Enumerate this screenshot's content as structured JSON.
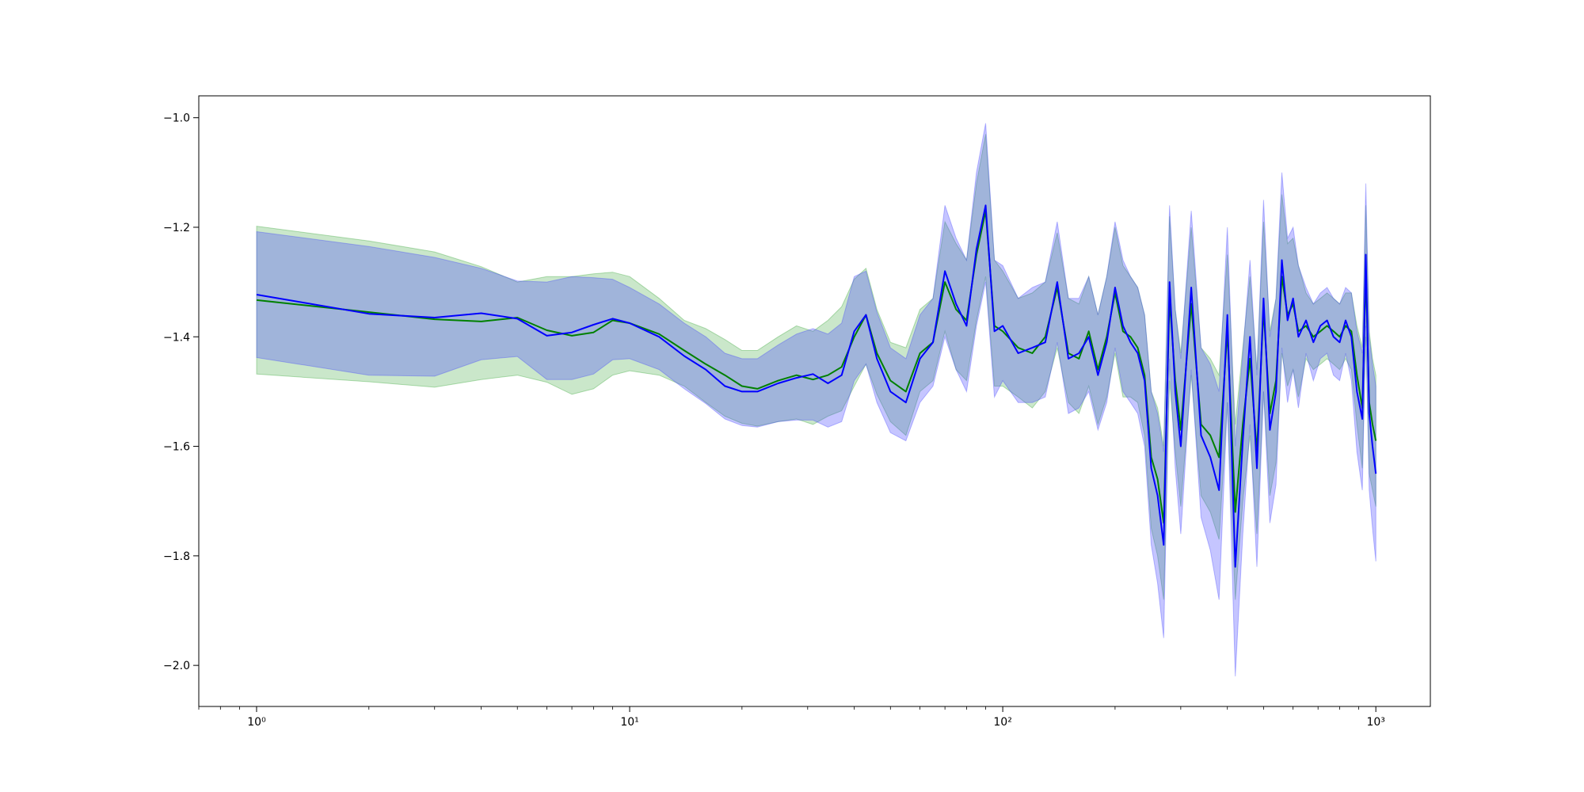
{
  "chart_data": {
    "type": "line",
    "title": "",
    "xlabel": "",
    "ylabel": "",
    "xscale": "log",
    "xlim": [
      0.7,
      1400
    ],
    "ylim": [
      -2.075,
      -0.96
    ],
    "grid": false,
    "colors": {
      "green": "#008000",
      "blue": "#0000ff",
      "green_band": "#2ca02c",
      "blue_band": "#4040ff"
    },
    "x_ticks": [
      {
        "value": 1,
        "label": "10⁰"
      },
      {
        "value": 10,
        "label": "10¹"
      },
      {
        "value": 100,
        "label": "10²"
      },
      {
        "value": 1000,
        "label": "10³"
      }
    ],
    "y_ticks": [
      {
        "value": -1.0,
        "label": "−1.0"
      },
      {
        "value": -1.2,
        "label": "−1.2"
      },
      {
        "value": -1.4,
        "label": "−1.4"
      },
      {
        "value": -1.6,
        "label": "−1.6"
      },
      {
        "value": -1.8,
        "label": "−1.8"
      },
      {
        "value": -2.0,
        "label": "−2.0"
      }
    ],
    "x": [
      1,
      2,
      3,
      4,
      5,
      6,
      7,
      8,
      9,
      10,
      12,
      14,
      16,
      18,
      20,
      22,
      25,
      28,
      31,
      34,
      37,
      40,
      43,
      46,
      50,
      55,
      60,
      65,
      70,
      75,
      80,
      85,
      90,
      95,
      100,
      110,
      120,
      130,
      140,
      150,
      160,
      170,
      180,
      190,
      200,
      210,
      220,
      230,
      240,
      250,
      260,
      270,
      280,
      290,
      300,
      320,
      340,
      360,
      380,
      400,
      420,
      440,
      460,
      480,
      500,
      520,
      540,
      560,
      580,
      600,
      620,
      650,
      680,
      710,
      740,
      770,
      800,
      830,
      860,
      890,
      920,
      940,
      960,
      980,
      1000
    ],
    "series": [
      {
        "color": "green",
        "values": [
          -1.333,
          -1.355,
          -1.368,
          -1.372,
          -1.365,
          -1.388,
          -1.398,
          -1.392,
          -1.37,
          -1.375,
          -1.395,
          -1.425,
          -1.45,
          -1.47,
          -1.49,
          -1.495,
          -1.48,
          -1.47,
          -1.478,
          -1.47,
          -1.455,
          -1.4,
          -1.36,
          -1.43,
          -1.48,
          -1.5,
          -1.43,
          -1.41,
          -1.3,
          -1.35,
          -1.37,
          -1.25,
          -1.17,
          -1.38,
          -1.39,
          -1.42,
          -1.43,
          -1.4,
          -1.31,
          -1.43,
          -1.44,
          -1.39,
          -1.46,
          -1.4,
          -1.32,
          -1.39,
          -1.4,
          -1.42,
          -1.47,
          -1.62,
          -1.66,
          -1.74,
          -1.33,
          -1.48,
          -1.57,
          -1.34,
          -1.56,
          -1.58,
          -1.62,
          -1.39,
          -1.72,
          -1.56,
          -1.44,
          -1.61,
          -1.35,
          -1.54,
          -1.48,
          -1.29,
          -1.36,
          -1.34,
          -1.39,
          -1.38,
          -1.4,
          -1.39,
          -1.38,
          -1.39,
          -1.4,
          -1.38,
          -1.39,
          -1.47,
          -1.53,
          -1.28,
          -1.52,
          -1.56,
          -1.59
        ]
      },
      {
        "color": "blue",
        "values": [
          -1.323,
          -1.358,
          -1.365,
          -1.357,
          -1.367,
          -1.398,
          -1.392,
          -1.378,
          -1.367,
          -1.375,
          -1.4,
          -1.435,
          -1.46,
          -1.49,
          -1.5,
          -1.5,
          -1.485,
          -1.475,
          -1.468,
          -1.485,
          -1.47,
          -1.39,
          -1.36,
          -1.44,
          -1.5,
          -1.52,
          -1.44,
          -1.41,
          -1.28,
          -1.34,
          -1.38,
          -1.24,
          -1.16,
          -1.39,
          -1.38,
          -1.43,
          -1.42,
          -1.41,
          -1.3,
          -1.44,
          -1.43,
          -1.4,
          -1.47,
          -1.41,
          -1.31,
          -1.38,
          -1.41,
          -1.43,
          -1.48,
          -1.64,
          -1.69,
          -1.78,
          -1.3,
          -1.5,
          -1.6,
          -1.31,
          -1.58,
          -1.62,
          -1.68,
          -1.36,
          -1.82,
          -1.59,
          -1.4,
          -1.64,
          -1.33,
          -1.57,
          -1.5,
          -1.26,
          -1.37,
          -1.33,
          -1.4,
          -1.37,
          -1.41,
          -1.38,
          -1.37,
          -1.4,
          -1.41,
          -1.37,
          -1.4,
          -1.5,
          -1.55,
          -1.25,
          -1.54,
          -1.6,
          -1.65
        ]
      }
    ],
    "bands": [
      {
        "color": "green_band",
        "upper": [
          -1.198,
          -1.225,
          -1.245,
          -1.272,
          -1.3,
          -1.29,
          -1.29,
          -1.285,
          -1.282,
          -1.29,
          -1.33,
          -1.37,
          -1.385,
          -1.405,
          -1.425,
          -1.425,
          -1.4,
          -1.38,
          -1.39,
          -1.37,
          -1.345,
          -1.295,
          -1.275,
          -1.35,
          -1.41,
          -1.42,
          -1.35,
          -1.33,
          -1.19,
          -1.23,
          -1.26,
          -1.12,
          -1.03,
          -1.26,
          -1.28,
          -1.33,
          -1.32,
          -1.3,
          -1.21,
          -1.33,
          -1.34,
          -1.29,
          -1.36,
          -1.29,
          -1.2,
          -1.27,
          -1.29,
          -1.31,
          -1.36,
          -1.5,
          -1.53,
          -1.6,
          -1.18,
          -1.35,
          -1.43,
          -1.2,
          -1.42,
          -1.44,
          -1.47,
          -1.25,
          -1.56,
          -1.42,
          -1.29,
          -1.46,
          -1.19,
          -1.39,
          -1.33,
          -1.14,
          -1.23,
          -1.22,
          -1.27,
          -1.32,
          -1.34,
          -1.33,
          -1.32,
          -1.33,
          -1.34,
          -1.32,
          -1.32,
          -1.38,
          -1.42,
          -1.16,
          -1.39,
          -1.44,
          -1.47
        ],
        "lower": [
          -1.468,
          -1.482,
          -1.492,
          -1.478,
          -1.47,
          -1.483,
          -1.505,
          -1.495,
          -1.47,
          -1.462,
          -1.47,
          -1.49,
          -1.52,
          -1.545,
          -1.558,
          -1.563,
          -1.555,
          -1.55,
          -1.56,
          -1.545,
          -1.535,
          -1.49,
          -1.45,
          -1.505,
          -1.555,
          -1.58,
          -1.5,
          -1.48,
          -1.39,
          -1.46,
          -1.48,
          -1.37,
          -1.29,
          -1.49,
          -1.49,
          -1.51,
          -1.53,
          -1.5,
          -1.42,
          -1.52,
          -1.54,
          -1.49,
          -1.56,
          -1.51,
          -1.43,
          -1.51,
          -1.51,
          -1.52,
          -1.58,
          -1.75,
          -1.8,
          -1.88,
          -1.48,
          -1.61,
          -1.71,
          -1.47,
          -1.69,
          -1.72,
          -1.77,
          -1.52,
          -1.88,
          -1.7,
          -1.58,
          -1.76,
          -1.5,
          -1.69,
          -1.63,
          -1.43,
          -1.49,
          -1.46,
          -1.51,
          -1.44,
          -1.46,
          -1.45,
          -1.44,
          -1.45,
          -1.46,
          -1.44,
          -1.46,
          -1.56,
          -1.64,
          -1.4,
          -1.65,
          -1.68,
          -1.71
        ]
      },
      {
        "color": "blue_band",
        "upper": [
          -1.208,
          -1.235,
          -1.255,
          -1.275,
          -1.298,
          -1.3,
          -1.29,
          -1.292,
          -1.295,
          -1.31,
          -1.34,
          -1.375,
          -1.4,
          -1.43,
          -1.44,
          -1.44,
          -1.415,
          -1.395,
          -1.385,
          -1.395,
          -1.375,
          -1.29,
          -1.28,
          -1.355,
          -1.42,
          -1.44,
          -1.36,
          -1.33,
          -1.16,
          -1.22,
          -1.26,
          -1.1,
          -1.01,
          -1.26,
          -1.27,
          -1.33,
          -1.31,
          -1.3,
          -1.19,
          -1.33,
          -1.33,
          -1.29,
          -1.36,
          -1.29,
          -1.19,
          -1.26,
          -1.29,
          -1.31,
          -1.36,
          -1.5,
          -1.54,
          -1.61,
          -1.16,
          -1.35,
          -1.44,
          -1.17,
          -1.42,
          -1.45,
          -1.5,
          -1.2,
          -1.6,
          -1.43,
          -1.26,
          -1.47,
          -1.15,
          -1.4,
          -1.33,
          -1.1,
          -1.22,
          -1.2,
          -1.27,
          -1.31,
          -1.34,
          -1.32,
          -1.31,
          -1.33,
          -1.34,
          -1.31,
          -1.32,
          -1.39,
          -1.43,
          -1.12,
          -1.4,
          -1.45,
          -1.49
        ],
        "lower": [
          -1.438,
          -1.47,
          -1.472,
          -1.442,
          -1.436,
          -1.478,
          -1.478,
          -1.468,
          -1.442,
          -1.44,
          -1.46,
          -1.495,
          -1.522,
          -1.55,
          -1.562,
          -1.565,
          -1.555,
          -1.552,
          -1.552,
          -1.565,
          -1.555,
          -1.48,
          -1.45,
          -1.52,
          -1.575,
          -1.59,
          -1.52,
          -1.49,
          -1.4,
          -1.46,
          -1.5,
          -1.38,
          -1.3,
          -1.51,
          -1.48,
          -1.52,
          -1.52,
          -1.51,
          -1.41,
          -1.54,
          -1.53,
          -1.5,
          -1.57,
          -1.52,
          -1.42,
          -1.5,
          -1.52,
          -1.54,
          -1.6,
          -1.78,
          -1.85,
          -1.95,
          -1.44,
          -1.64,
          -1.76,
          -1.46,
          -1.73,
          -1.79,
          -1.88,
          -1.52,
          -2.02,
          -1.76,
          -1.56,
          -1.82,
          -1.5,
          -1.74,
          -1.67,
          -1.42,
          -1.52,
          -1.46,
          -1.53,
          -1.43,
          -1.48,
          -1.44,
          -1.43,
          -1.47,
          -1.48,
          -1.43,
          -1.48,
          -1.61,
          -1.68,
          -1.38,
          -1.68,
          -1.75,
          -1.81
        ]
      }
    ]
  }
}
